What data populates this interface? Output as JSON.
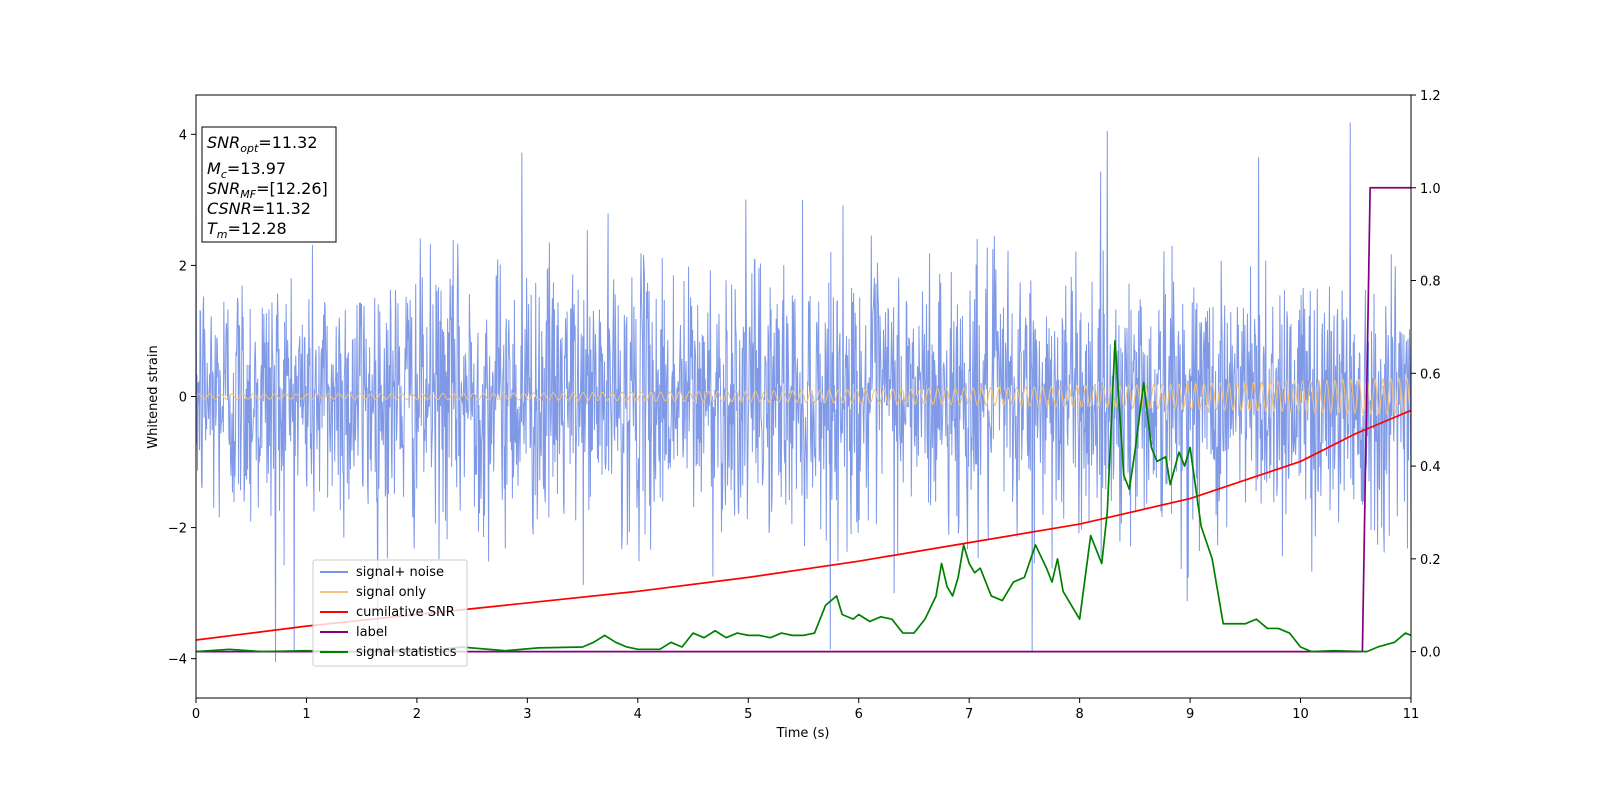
{
  "chart_data": {
    "type": "line",
    "xlabel": "Time (s)",
    "ylabel": "Whitened strain",
    "xlim": [
      0,
      11
    ],
    "ylim": [
      -4.6,
      4.6
    ],
    "y2lim": [
      -0.1,
      1.2
    ],
    "x_ticks": [
      "0",
      "1",
      "2",
      "3",
      "4",
      "5",
      "6",
      "7",
      "8",
      "9",
      "10",
      "11"
    ],
    "y_ticks": [
      "4",
      "2",
      "0",
      "−2",
      "−4"
    ],
    "y2_ticks": [
      "1.2",
      "1.0",
      "0.8",
      "0.6",
      "0.4",
      "0.2",
      "0.0"
    ],
    "annotation": {
      "snr_opt": {
        "base": "SNR",
        "sub": "opt",
        "value": "=11.32"
      },
      "mc": {
        "base": "M",
        "sub": "c",
        "value": "=13.97"
      },
      "snr_mf": {
        "base": "SNR",
        "sub": "MF",
        "value": "=[12.26]"
      },
      "csnr": {
        "base": "CSNR",
        "value": "=11.32"
      },
      "tm": {
        "base": "T",
        "sub": "m",
        "value": "=12.28"
      }
    },
    "legend": {
      "placement": "lower-left",
      "entries": [
        "signal+ noise",
        "signal only",
        "cumilative SNR",
        "label",
        "signal statistics"
      ]
    },
    "series": [
      {
        "name": "signal+ noise",
        "axis": "left",
        "color": "#7894e6",
        "description_values": {
          "typical_amplitude": 1.0,
          "peak_max": 4.18,
          "peak_min": -4.05
        }
      },
      {
        "name": "signal only",
        "axis": "left",
        "color": "#f5c27a",
        "amplitude_start": 0.04,
        "amplitude_end": 0.28
      },
      {
        "name": "cumilative SNR",
        "axis": "right",
        "color": "#ff0000",
        "x": [
          0,
          1,
          2,
          3,
          4,
          5,
          6,
          7,
          8,
          9,
          10,
          10.5,
          11
        ],
        "values": [
          0.025,
          0.055,
          0.08,
          0.105,
          0.13,
          0.16,
          0.195,
          0.235,
          0.275,
          0.33,
          0.41,
          0.47,
          0.52
        ]
      },
      {
        "name": "label",
        "axis": "right",
        "color": "#800080",
        "x": [
          0,
          10.56,
          10.63,
          11
        ],
        "values": [
          0.0,
          0.0,
          1.0,
          1.0
        ]
      },
      {
        "name": "signal statistics",
        "axis": "right",
        "color": "#008000",
        "x": [
          0,
          0.3,
          0.6,
          1.0,
          1.4,
          1.8,
          2.2,
          2.4,
          2.8,
          3.1,
          3.5,
          3.6,
          3.7,
          3.8,
          3.9,
          4.0,
          4.2,
          4.3,
          4.4,
          4.5,
          4.6,
          4.7,
          4.8,
          4.9,
          5.0,
          5.1,
          5.2,
          5.3,
          5.4,
          5.5,
          5.6,
          5.7,
          5.8,
          5.85,
          5.95,
          6.0,
          6.1,
          6.2,
          6.3,
          6.4,
          6.5,
          6.6,
          6.7,
          6.75,
          6.8,
          6.85,
          6.9,
          6.95,
          7.0,
          7.05,
          7.1,
          7.2,
          7.3,
          7.4,
          7.5,
          7.6,
          7.7,
          7.75,
          7.8,
          7.85,
          8.0,
          8.1,
          8.2,
          8.25,
          8.32,
          8.4,
          8.45,
          8.5,
          8.58,
          8.65,
          8.7,
          8.78,
          8.82,
          8.9,
          8.95,
          9.0,
          9.1,
          9.2,
          9.3,
          9.4,
          9.5,
          9.6,
          9.7,
          9.8,
          9.9,
          10.0,
          10.1,
          10.3,
          10.6,
          10.7,
          10.85,
          10.95,
          11.0
        ],
        "values": [
          0.0,
          0.005,
          0.0,
          0.002,
          0.0,
          0.003,
          0.004,
          0.01,
          0.002,
          0.008,
          0.01,
          0.02,
          0.035,
          0.02,
          0.01,
          0.005,
          0.005,
          0.02,
          0.01,
          0.04,
          0.03,
          0.045,
          0.03,
          0.04,
          0.035,
          0.035,
          0.03,
          0.04,
          0.035,
          0.035,
          0.04,
          0.1,
          0.12,
          0.08,
          0.07,
          0.08,
          0.065,
          0.075,
          0.07,
          0.04,
          0.04,
          0.07,
          0.12,
          0.19,
          0.14,
          0.12,
          0.16,
          0.23,
          0.19,
          0.17,
          0.18,
          0.12,
          0.11,
          0.15,
          0.16,
          0.23,
          0.18,
          0.15,
          0.2,
          0.13,
          0.07,
          0.25,
          0.19,
          0.3,
          0.67,
          0.38,
          0.35,
          0.43,
          0.58,
          0.44,
          0.41,
          0.42,
          0.36,
          0.43,
          0.4,
          0.44,
          0.27,
          0.2,
          0.06,
          0.06,
          0.06,
          0.07,
          0.05,
          0.05,
          0.04,
          0.01,
          0.0,
          0.002,
          0.0,
          0.01,
          0.02,
          0.04,
          0.035
        ]
      }
    ],
    "grid": false
  }
}
